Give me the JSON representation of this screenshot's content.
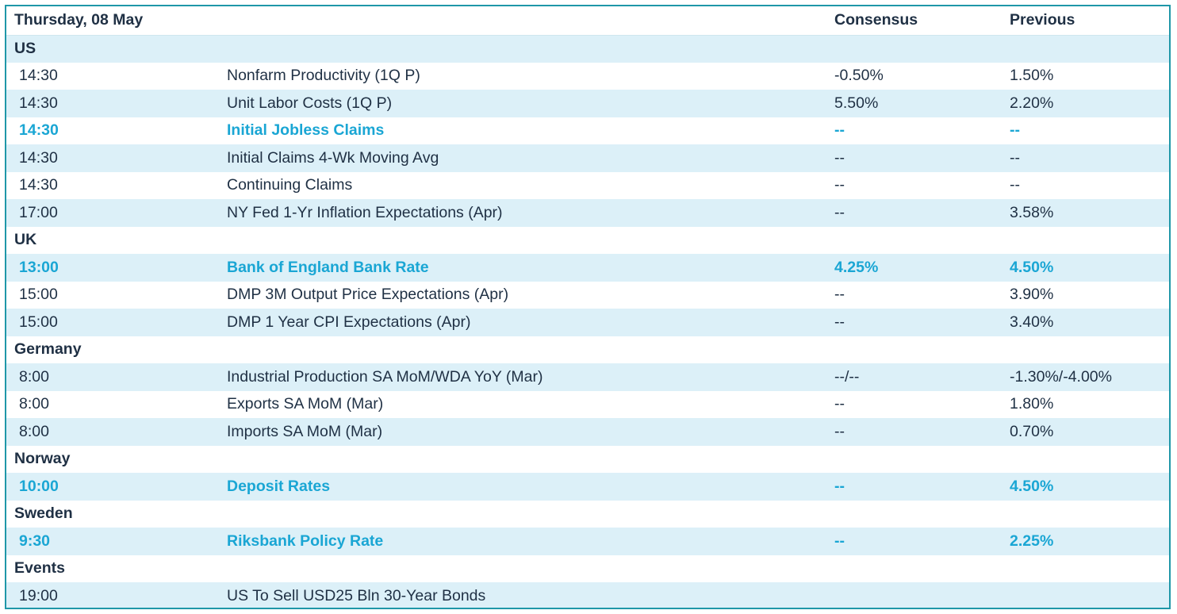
{
  "header": {
    "date": "Thursday, 08 May",
    "consensus": "Consensus",
    "previous": "Previous"
  },
  "rows": [
    {
      "type": "country",
      "label": "US"
    },
    {
      "type": "item",
      "time": "14:30",
      "event": "Nonfarm Productivity (1Q P)",
      "consensus": "-0.50%",
      "previous": "1.50%",
      "highlight": false
    },
    {
      "type": "item",
      "time": "14:30",
      "event": "Unit Labor Costs (1Q P)",
      "consensus": "5.50%",
      "previous": "2.20%",
      "highlight": false
    },
    {
      "type": "item",
      "time": "14:30",
      "event": "Initial Jobless Claims",
      "consensus": "--",
      "previous": "--",
      "highlight": true
    },
    {
      "type": "item",
      "time": "14:30",
      "event": "Initial Claims 4-Wk Moving Avg",
      "consensus": "--",
      "previous": "--",
      "highlight": false
    },
    {
      "type": "item",
      "time": "14:30",
      "event": "Continuing Claims",
      "consensus": "--",
      "previous": "--",
      "highlight": false
    },
    {
      "type": "item",
      "time": "17:00",
      "event": "NY Fed 1-Yr Inflation Expectations (Apr)",
      "consensus": "--",
      "previous": "3.58%",
      "highlight": false
    },
    {
      "type": "country",
      "label": "UK"
    },
    {
      "type": "item",
      "time": "13:00",
      "event": "Bank of England Bank Rate",
      "consensus": "4.25%",
      "previous": "4.50%",
      "highlight": true
    },
    {
      "type": "item",
      "time": "15:00",
      "event": "DMP 3M Output Price Expectations (Apr)",
      "consensus": "--",
      "previous": "3.90%",
      "highlight": false
    },
    {
      "type": "item",
      "time": "15:00",
      "event": "DMP 1 Year CPI Expectations (Apr)",
      "consensus": "--",
      "previous": "3.40%",
      "highlight": false
    },
    {
      "type": "country",
      "label": "Germany"
    },
    {
      "type": "item",
      "time": "8:00",
      "event": "Industrial Production SA MoM/WDA YoY (Mar)",
      "consensus": "--/--",
      "previous": "-1.30%/-4.00%",
      "highlight": false
    },
    {
      "type": "item",
      "time": "8:00",
      "event": "Exports SA MoM (Mar)",
      "consensus": "--",
      "previous": "1.80%",
      "highlight": false
    },
    {
      "type": "item",
      "time": "8:00",
      "event": "Imports SA MoM (Mar)",
      "consensus": "--",
      "previous": "0.70%",
      "highlight": false
    },
    {
      "type": "country",
      "label": "Norway"
    },
    {
      "type": "item",
      "time": "10:00",
      "event": "Deposit Rates",
      "consensus": "--",
      "previous": "4.50%",
      "highlight": true
    },
    {
      "type": "country",
      "label": "Sweden"
    },
    {
      "type": "item",
      "time": "9:30",
      "event": "Riksbank Policy Rate",
      "consensus": "--",
      "previous": "2.25%",
      "highlight": true
    },
    {
      "type": "country",
      "label": "Events"
    },
    {
      "type": "item",
      "time": "19:00",
      "event": "US To Sell USD25 Bln 30-Year Bonds",
      "consensus": "",
      "previous": "",
      "highlight": false
    }
  ],
  "colors": {
    "border": "#1f97a8",
    "row_shade": "#dcf0f8",
    "highlight_text": "#1aa6d4",
    "text": "#1f3044"
  }
}
